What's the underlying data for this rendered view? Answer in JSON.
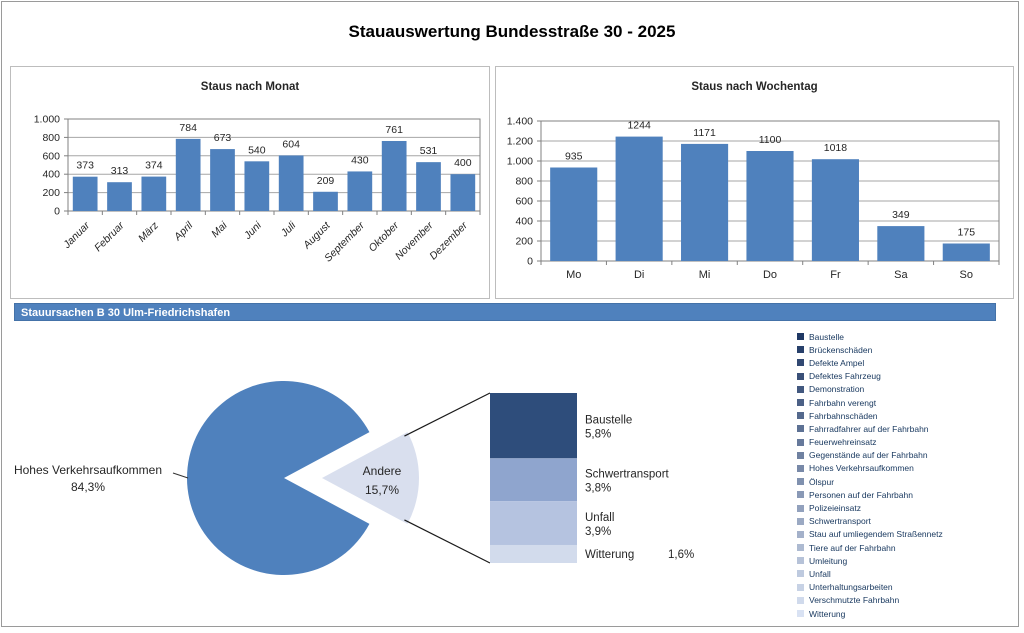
{
  "page": {
    "title": "Stauauswertung Bundesstraße 30 - 2025"
  },
  "banner": {
    "label": "Stauursachen B 30 Ulm-Friedrichshafen",
    "bg": "#4F81BD"
  },
  "colors": {
    "bar": "#4F81BD",
    "grid": "#A6A6A6",
    "axis": "#808080"
  },
  "chart_data": [
    {
      "id": "staus-nach-monat",
      "type": "bar",
      "title": "Staus nach Monat",
      "categories": [
        "Januar",
        "Februar",
        "März",
        "April",
        "Mai",
        "Juni",
        "Juli",
        "August",
        "September",
        "Oktober",
        "November",
        "Dezember"
      ],
      "values": [
        373,
        313,
        374,
        784,
        673,
        540,
        604,
        209,
        430,
        761,
        531,
        400
      ],
      "xlabel": "",
      "ylabel": "",
      "ylim": [
        0,
        1000
      ],
      "ystep": 200,
      "yticks": [
        "0",
        "200",
        "400",
        "600",
        "800",
        "1.000"
      ],
      "grid": true,
      "legend_position": "none",
      "bar_color": "#4F81BD",
      "rotate_labels": true
    },
    {
      "id": "staus-nach-wochentag",
      "type": "bar",
      "title": "Staus nach Wochentag",
      "categories": [
        "Mo",
        "Di",
        "Mi",
        "Do",
        "Fr",
        "Sa",
        "So"
      ],
      "values": [
        935,
        1244,
        1171,
        1100,
        1018,
        349,
        175
      ],
      "xlabel": "",
      "ylabel": "",
      "ylim": [
        0,
        1400
      ],
      "ystep": 200,
      "yticks": [
        "0",
        "200",
        "400",
        "600",
        "800",
        "1.000",
        "1.200",
        "1.400"
      ],
      "grid": true,
      "legend_position": "none",
      "bar_color": "#4F81BD",
      "rotate_labels": false
    },
    {
      "id": "stauursachen",
      "type": "pie",
      "title": "Stauursachen B 30 Ulm-Friedrichshafen",
      "slices": [
        {
          "label": "Hohes Verkehrsaufkommen",
          "pct_label": "84,3%",
          "value": 84.3,
          "color": "#4F81BD",
          "exploded": false
        },
        {
          "label": "Andere",
          "pct_label": "15,7%",
          "value": 15.7,
          "color": "#D9DFEE",
          "exploded": true
        }
      ],
      "breakdown": [
        {
          "label": "Baustelle",
          "pct_label": "5,8%",
          "value": 5.8,
          "color": "#2E4D7B"
        },
        {
          "label": "Schwertransport",
          "pct_label": "3,8%",
          "value": 3.8,
          "color": "#8FA5CE"
        },
        {
          "label": "Unfall",
          "pct_label": "3,9%",
          "value": 3.9,
          "color": "#B5C3E0"
        },
        {
          "label": "Witterung",
          "pct_label": "1,6%",
          "value": 1.6,
          "color": "#D2DBEC"
        }
      ],
      "legend_position": "right",
      "legend": [
        {
          "label": "Baustelle",
          "color": "#1F3864"
        },
        {
          "label": "Brückenschäden",
          "color": "#28406B"
        },
        {
          "label": "Defekte Ampel",
          "color": "#314872"
        },
        {
          "label": "Defektes Fahrzeug",
          "color": "#3A5078"
        },
        {
          "label": "Demonstration",
          "color": "#42587F"
        },
        {
          "label": "Fahrbahn verengt",
          "color": "#4B6086"
        },
        {
          "label": "Fahrbahnschäden",
          "color": "#54698D"
        },
        {
          "label": "Fahrradfahrer auf der Fahrbahn",
          "color": "#5D7194"
        },
        {
          "label": "Feuerwehreinsatz",
          "color": "#66799B"
        },
        {
          "label": "Gegenstände auf der Fahrbahn",
          "color": "#6F81A1"
        },
        {
          "label": "Hohes Verkehrsaufkommen",
          "color": "#7889A8"
        },
        {
          "label": "Ölspur",
          "color": "#8091AF"
        },
        {
          "label": "Personen auf der Fahrbahn",
          "color": "#8999B6"
        },
        {
          "label": "Polizeieinsatz",
          "color": "#92A1BD"
        },
        {
          "label": "Schwertransport",
          "color": "#9BA9C3"
        },
        {
          "label": "Stau auf umliegendem Straßennetz",
          "color": "#A4B1CA"
        },
        {
          "label": "Tiere auf der Fahrbahn",
          "color": "#ADBAD1"
        },
        {
          "label": "Umleitung",
          "color": "#B6C2D8"
        },
        {
          "label": "Unfall",
          "color": "#BECADF"
        },
        {
          "label": "Unterhaltungsarbeiten",
          "color": "#C7D2E5"
        },
        {
          "label": "Verschmutzte Fahrbahn",
          "color": "#D0DAEC"
        },
        {
          "label": "Witterung",
          "color": "#D9E2F3"
        }
      ]
    }
  ]
}
